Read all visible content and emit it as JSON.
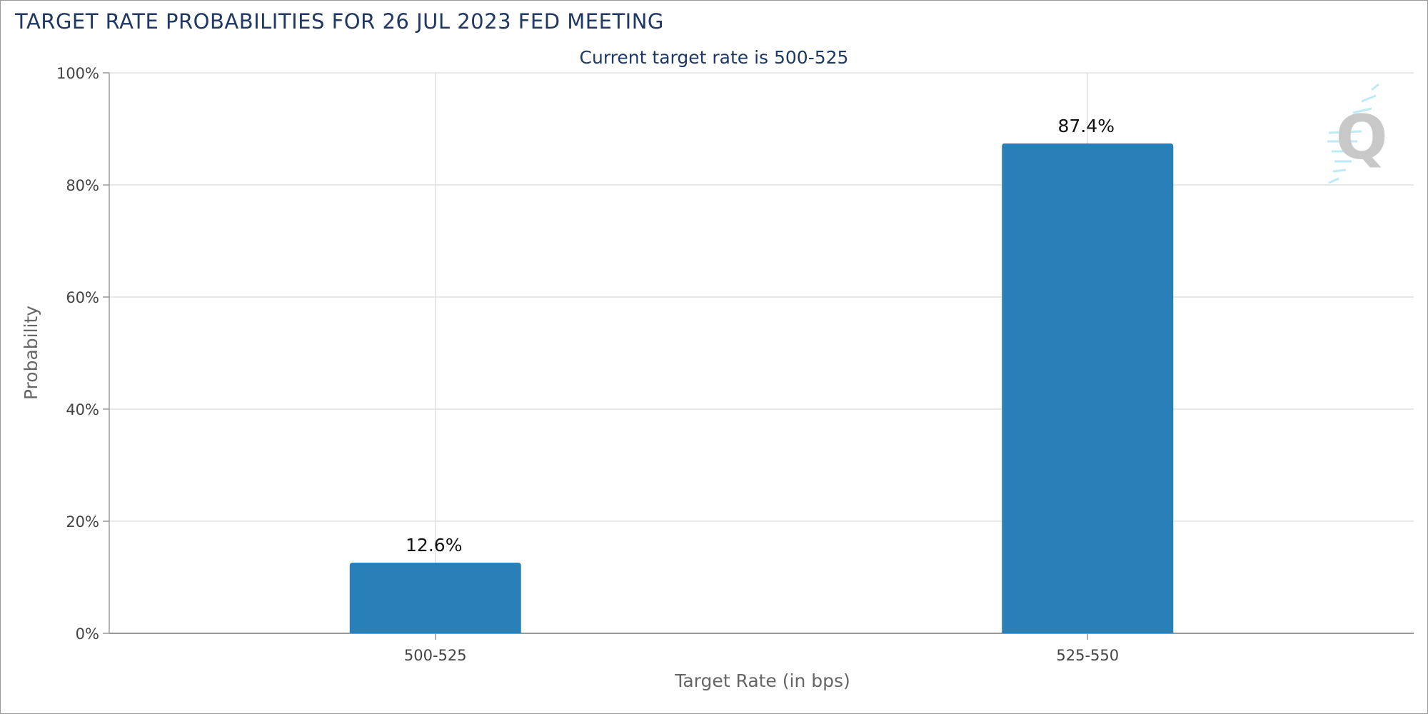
{
  "chart_data": {
    "type": "bar",
    "title": "TARGET RATE PROBABILITIES FOR 26 JUL 2023 FED MEETING",
    "subtitle": "Current target rate is 500-525",
    "xlabel": "Target Rate (in bps)",
    "ylabel": "Probability",
    "categories": [
      "500-525",
      "525-550"
    ],
    "values": [
      12.6,
      87.4
    ],
    "value_labels": [
      "12.6%",
      "87.4%"
    ],
    "ylim": [
      0,
      100
    ],
    "yticks": [
      0,
      20,
      40,
      60,
      80,
      100
    ],
    "ytick_labels": [
      "0%",
      "20%",
      "40%",
      "60%",
      "80%",
      "100%"
    ],
    "grid": true,
    "bar_color": "#2980b9"
  }
}
